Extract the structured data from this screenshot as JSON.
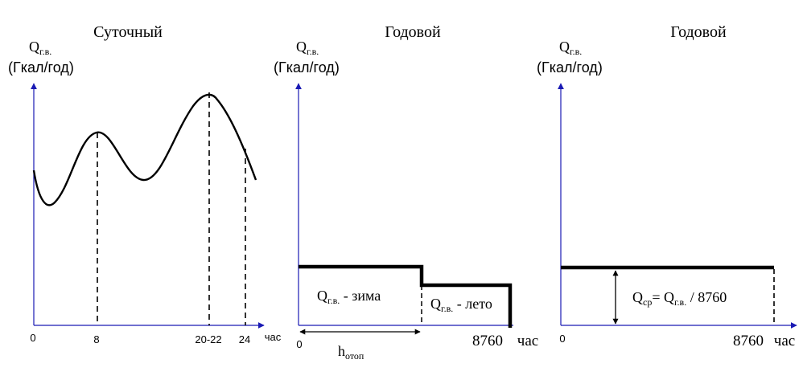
{
  "panels": [
    {
      "title": "Суточный",
      "ylabel": {
        "q": "Q",
        "sub": "г.в.",
        "unit": "(Гкал/год)"
      },
      "ticks": [
        "0",
        "8",
        "20-22",
        "24"
      ],
      "xunit": "час"
    },
    {
      "title": "Годовой",
      "ylabel": {
        "q": "Q",
        "sub": "г.в.",
        "unit": "(Гкал/год)"
      },
      "ticks": [
        "0",
        "8760"
      ],
      "xunit": "час",
      "winter": {
        "q": "Q",
        "sub": "г.в.",
        "text": " - зима"
      },
      "summer": {
        "q": "Q",
        "sub": "г.в.",
        "text": " - лето"
      },
      "period": {
        "h": "h",
        "sub": "отоп"
      }
    },
    {
      "title": "Годовой",
      "ylabel": {
        "q": "Q",
        "sub": "г.в.",
        "unit": "(Гкал/год)"
      },
      "ticks": [
        "0",
        "8760"
      ],
      "xunit": "час",
      "formula": {
        "q": "Q",
        "sub1": "ср",
        "eq": "= Q",
        "sub2": "г.в.",
        "tail": " / 8760"
      }
    }
  ],
  "colors": {
    "axis": "#1a1ab4",
    "curve": "#000000",
    "text": "#000000"
  }
}
